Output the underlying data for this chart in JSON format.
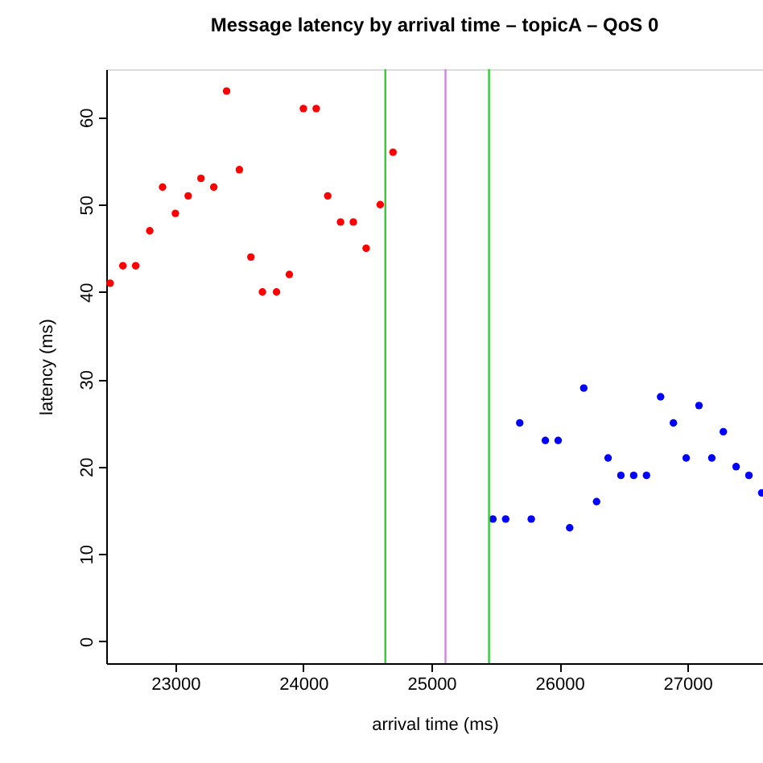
{
  "chart_data": {
    "type": "scatter",
    "title": "Message latency by arrival time – topicA – QoS 0",
    "xlabel": "arrival time (ms)",
    "ylabel": "latency (ms)",
    "series": [
      {
        "color": "#ff0000",
        "x": [
          22490,
          22590,
          22690,
          22800,
          22900,
          23000,
          23100,
          23200,
          23300,
          23400,
          23500,
          23590,
          23680,
          23790,
          23890,
          24000,
          24100,
          24190,
          24290,
          24390,
          24490,
          24600,
          24700
        ],
        "values": [
          41,
          43,
          43,
          47,
          52,
          49,
          51,
          53,
          52,
          63,
          54,
          44,
          40,
          40,
          42,
          61,
          61,
          51,
          48,
          48,
          45,
          50,
          56
        ]
      },
      {
        "color": "#0000ff",
        "x": [
          25480,
          25580,
          25690,
          25780,
          25890,
          25990,
          26080,
          26190,
          26290,
          26380,
          26480,
          26580,
          26680,
          26790,
          26890,
          26990,
          27090,
          27190,
          27280,
          27380,
          27480,
          27580
        ],
        "values": [
          14,
          14,
          25,
          14,
          23,
          23,
          13,
          29,
          16,
          21,
          19,
          19,
          19,
          28,
          25,
          21,
          27,
          21,
          24,
          20,
          19,
          17
        ]
      }
    ],
    "xlim": [
      22460,
      27590
    ],
    "ylim": [
      -2.5,
      65.5
    ],
    "xticks": [
      23000,
      24000,
      25000,
      26000,
      27000
    ],
    "yticks": [
      0,
      10,
      20,
      30,
      40,
      50,
      60
    ],
    "ref_lines": [
      {
        "axis": "x",
        "value": 24640,
        "color": "#33cc33"
      },
      {
        "axis": "x",
        "value": 25110,
        "color": "#cc88dd"
      },
      {
        "axis": "x",
        "value": 25450,
        "color": "#33cc33"
      }
    ],
    "marker": "circle",
    "grid": false
  }
}
